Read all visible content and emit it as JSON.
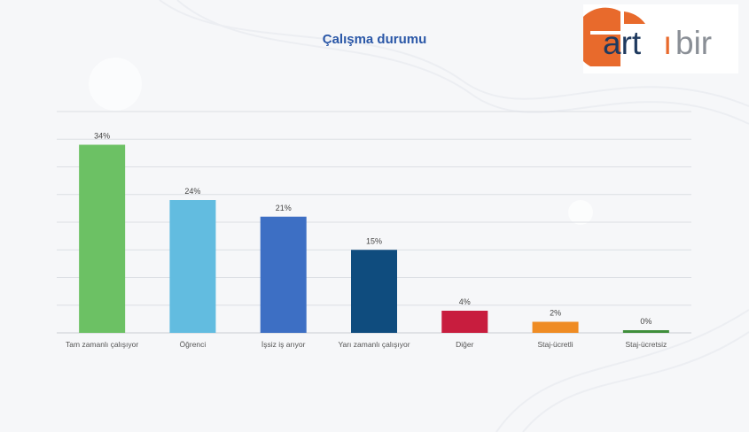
{
  "title": "Çalışma durumu",
  "logo": {
    "text_dark": "art",
    "text_orange": "ı",
    "text_gray": "bir",
    "accent_color": "#e86a2c",
    "dark_color": "#1f3a5f",
    "gray_color": "#8a8f96"
  },
  "chart_data": {
    "type": "bar",
    "categories": [
      "Tam zamanlı çalışıyor",
      "Öğrenci",
      "İşsiz iş arıyor",
      "Yarı zamanlı çalışıyor",
      "Diğer",
      "Staj-ücretli",
      "Staj-ücretsiz"
    ],
    "values": [
      34,
      24,
      21,
      15,
      4,
      2,
      0
    ],
    "data_labels": [
      "34%",
      "24%",
      "21%",
      "15%",
      "4%",
      "2%",
      "0%"
    ],
    "colors": [
      "#6cc164",
      "#62bce0",
      "#3d6fc4",
      "#0f4c7e",
      "#c81d3e",
      "#ef8c24",
      "#3f8f3b"
    ],
    "title": "Çalışma durumu",
    "xlabel": "",
    "ylabel": "",
    "ylim": [
      0,
      40
    ],
    "grid": true,
    "legend": "none"
  }
}
